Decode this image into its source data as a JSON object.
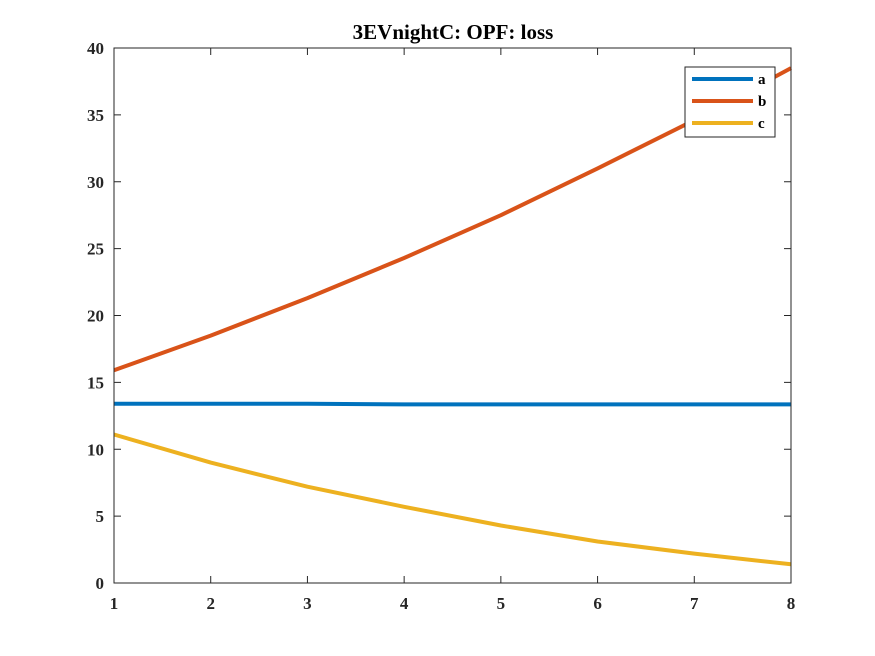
{
  "chart_data": {
    "type": "line",
    "title": "3EVnightC: OPF: loss",
    "xlabel": "",
    "ylabel": "",
    "xlim": [
      1,
      8
    ],
    "ylim": [
      0,
      40
    ],
    "xticks": [
      1,
      2,
      3,
      4,
      5,
      6,
      7,
      8
    ],
    "yticks": [
      0,
      5,
      10,
      15,
      20,
      25,
      30,
      35,
      40
    ],
    "grid": false,
    "legend_position": "top-right",
    "x": [
      1,
      2,
      3,
      4,
      5,
      6,
      7,
      8
    ],
    "series": [
      {
        "name": "a",
        "color": "#0072BD",
        "values": [
          13.4,
          13.4,
          13.4,
          13.35,
          13.35,
          13.35,
          13.35,
          13.35
        ]
      },
      {
        "name": "b",
        "color": "#D95319",
        "values": [
          15.9,
          18.5,
          21.3,
          24.3,
          27.5,
          31.0,
          34.6,
          38.5
        ]
      },
      {
        "name": "c",
        "color": "#EDB120",
        "values": [
          11.1,
          9.0,
          7.2,
          5.7,
          4.3,
          3.1,
          2.2,
          1.4
        ]
      }
    ]
  }
}
